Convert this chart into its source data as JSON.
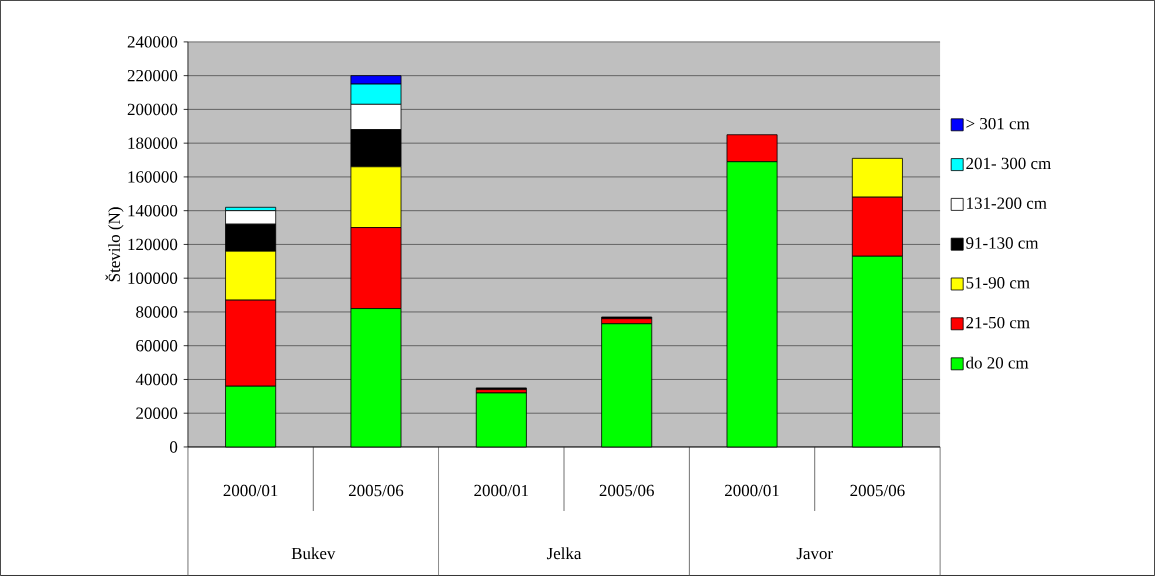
{
  "chart_data": {
    "type": "bar",
    "stacked": true,
    "ylabel": "Število (N)",
    "categories": [
      "2000/01",
      "2005/06",
      "2000/01",
      "2005/06",
      "2000/01",
      "2005/06"
    ],
    "annotations": [
      "Bukev",
      "Jelka",
      "Javor"
    ],
    "series": [
      {
        "name": "do 20 cm",
        "color": "#00ff00",
        "values": [
          36000,
          82000,
          32000,
          73000,
          169000,
          113000
        ]
      },
      {
        "name": "21-50 cm",
        "color": "#ff0000",
        "values": [
          51000,
          48000,
          2000,
          3000,
          16000,
          35000
        ]
      },
      {
        "name": "51-90 cm",
        "color": "#ffff00",
        "values": [
          29000,
          36000,
          0,
          0,
          0,
          23000
        ]
      },
      {
        "name": "91-130 cm",
        "color": "#000000",
        "values": [
          16000,
          22000,
          1000,
          1000,
          0,
          0
        ]
      },
      {
        "name": "131-200 cm",
        "color": "#ffffff",
        "values": [
          8000,
          15000,
          0,
          0,
          0,
          0
        ]
      },
      {
        "name": "201- 300 cm",
        "color": "#00ffff",
        "values": [
          2000,
          12000,
          0,
          0,
          0,
          0
        ]
      },
      {
        "name": "> 301 cm",
        "color": "#0000ff",
        "values": [
          0,
          5000,
          0,
          0,
          0,
          0
        ]
      }
    ],
    "ylim": [
      0,
      240000
    ],
    "yticks": [
      0,
      20000,
      40000,
      60000,
      80000,
      100000,
      120000,
      140000,
      160000,
      180000,
      200000,
      220000,
      240000
    ],
    "grid": "y",
    "legend": "right"
  }
}
